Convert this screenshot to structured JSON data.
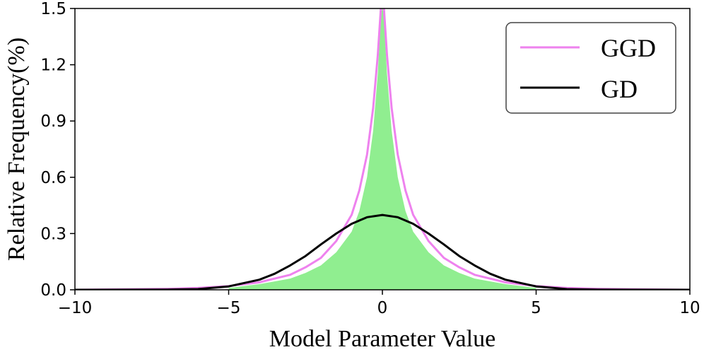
{
  "chart_data": {
    "type": "line",
    "title": "",
    "xlabel": "Model Parameter Value",
    "ylabel": "Relative Frequency(%)",
    "xlim": [
      -10,
      10
    ],
    "ylim": [
      0,
      1.5
    ],
    "x_ticks": [
      -10,
      -5,
      0,
      5,
      10
    ],
    "x_tick_labels": [
      "−10",
      "−5",
      "0",
      "5",
      "10"
    ],
    "y_ticks": [
      0.0,
      0.3,
      0.6,
      0.9,
      1.2,
      1.5
    ],
    "y_tick_labels": [
      "0.0",
      "0.3",
      "0.6",
      "0.9",
      "1.2",
      "1.5"
    ],
    "grid": false,
    "legend_position": "top-right",
    "histogram": {
      "color": "#90ee90",
      "x": [
        -5,
        -4,
        -3,
        -2.5,
        -2,
        -1.5,
        -1,
        -0.75,
        -0.5,
        -0.3,
        -0.15,
        -0.05,
        0,
        0.05,
        0.15,
        0.3,
        0.5,
        0.75,
        1,
        1.5,
        2,
        2.5,
        3,
        4,
        5
      ],
      "y": [
        0.01,
        0.03,
        0.06,
        0.09,
        0.13,
        0.2,
        0.31,
        0.42,
        0.6,
        0.85,
        1.15,
        1.45,
        1.52,
        1.45,
        1.15,
        0.85,
        0.6,
        0.42,
        0.31,
        0.2,
        0.13,
        0.09,
        0.06,
        0.03,
        0.01
      ]
    },
    "series": [
      {
        "name": "GGD",
        "color": "#ee82ee",
        "x": [
          -10,
          -7,
          -6,
          -5,
          -4,
          -3,
          -2.5,
          -2,
          -1.5,
          -1,
          -0.75,
          -0.5,
          -0.3,
          -0.15,
          -0.05,
          0,
          0.05,
          0.15,
          0.3,
          0.5,
          0.75,
          1,
          1.5,
          2,
          2.5,
          3,
          4,
          5,
          6,
          7,
          10
        ],
        "y": [
          0.0,
          0.005,
          0.01,
          0.02,
          0.04,
          0.08,
          0.12,
          0.17,
          0.26,
          0.4,
          0.53,
          0.72,
          0.97,
          1.25,
          1.5,
          1.6,
          1.5,
          1.25,
          0.97,
          0.72,
          0.53,
          0.4,
          0.26,
          0.17,
          0.12,
          0.08,
          0.04,
          0.02,
          0.01,
          0.005,
          0.0
        ]
      },
      {
        "name": "GD",
        "color": "#000000",
        "x": [
          -10,
          -7,
          -6,
          -5,
          -4,
          -3.5,
          -3,
          -2.5,
          -2,
          -1.5,
          -1,
          -0.5,
          0,
          0.5,
          1,
          1.5,
          2,
          2.5,
          3,
          3.5,
          4,
          5,
          6,
          7,
          10
        ],
        "y": [
          0.0,
          0.001,
          0.004,
          0.018,
          0.054,
          0.086,
          0.13,
          0.18,
          0.242,
          0.3,
          0.352,
          0.387,
          0.399,
          0.387,
          0.352,
          0.3,
          0.242,
          0.18,
          0.13,
          0.086,
          0.054,
          0.018,
          0.004,
          0.001,
          0.0
        ]
      }
    ]
  }
}
